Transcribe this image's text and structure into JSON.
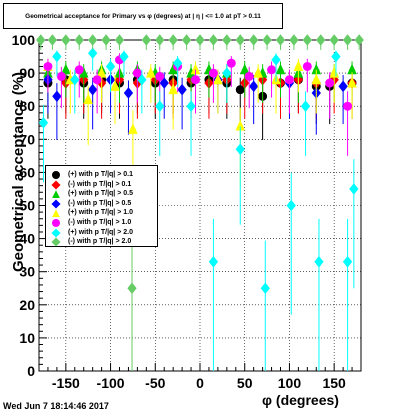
{
  "chart_data": {
    "type": "scatter",
    "title": "Geometrical acceptance for Primary vs φ (degrees) at | η | <= 1.0 at pT > 0.11",
    "xlabel": "φ (degrees)",
    "ylabel": "Geometrical acceptance (%)",
    "xlim": [
      -180,
      180
    ],
    "ylim": [
      0,
      100
    ],
    "xticks": [
      -150,
      -100,
      -50,
      0,
      50,
      100,
      150
    ],
    "yticks": [
      0,
      10,
      20,
      30,
      40,
      50,
      60,
      70,
      80,
      90,
      100
    ],
    "grid": true,
    "legend_position": "left-middle",
    "series": [
      {
        "name": "(+) with p T/|q| > 0.1",
        "color": "#000000",
        "marker": "circle",
        "points": [
          [
            -170,
            87
          ],
          [
            -150,
            88
          ],
          [
            -130,
            87
          ],
          [
            -110,
            88
          ],
          [
            -90,
            87
          ],
          [
            -70,
            88
          ],
          [
            -50,
            87
          ],
          [
            -30,
            88
          ],
          [
            -10,
            87
          ],
          [
            10,
            88
          ],
          [
            30,
            87
          ],
          [
            45,
            85
          ],
          [
            70,
            83
          ],
          [
            90,
            87
          ],
          [
            110,
            88
          ],
          [
            130,
            86
          ],
          [
            145,
            86
          ],
          [
            170,
            87
          ]
        ]
      },
      {
        "name": "(-) with p T/|q| > 0.1",
        "color": "#ff0000",
        "marker": "diamond",
        "points": [
          [
            -170,
            88
          ],
          [
            -150,
            87
          ],
          [
            -130,
            88
          ],
          [
            -110,
            87
          ],
          [
            -90,
            88
          ],
          [
            -70,
            87
          ],
          [
            -50,
            88
          ],
          [
            -30,
            87
          ],
          [
            -10,
            88
          ],
          [
            10,
            87
          ],
          [
            30,
            88
          ],
          [
            50,
            87
          ],
          [
            70,
            88
          ],
          [
            90,
            87
          ],
          [
            110,
            88
          ],
          [
            130,
            87
          ],
          [
            150,
            88
          ],
          [
            170,
            87
          ]
        ]
      },
      {
        "name": "(+) with p T/|q| > 0.5",
        "color": "#00cc00",
        "marker": "triangle",
        "points": [
          [
            -170,
            90
          ],
          [
            -150,
            91
          ],
          [
            -130,
            90
          ],
          [
            -110,
            91
          ],
          [
            -90,
            90
          ],
          [
            -70,
            91
          ],
          [
            -50,
            90
          ],
          [
            -30,
            91
          ],
          [
            -10,
            90
          ],
          [
            10,
            91
          ],
          [
            30,
            90
          ],
          [
            50,
            91
          ],
          [
            70,
            90
          ],
          [
            90,
            91
          ],
          [
            110,
            90
          ],
          [
            130,
            91
          ],
          [
            150,
            90
          ],
          [
            170,
            91
          ]
        ]
      },
      {
        "name": "(-) with p T/|q| > 0.5",
        "color": "#0000ff",
        "marker": "diamond",
        "points": [
          [
            -170,
            88
          ],
          [
            -160,
            83
          ],
          [
            -120,
            85
          ],
          [
            -100,
            88
          ],
          [
            -80,
            84
          ],
          [
            -40,
            87
          ],
          [
            -20,
            85
          ],
          [
            20,
            88
          ],
          [
            60,
            86
          ],
          [
            100,
            87
          ],
          [
            130,
            84
          ],
          [
            160,
            86
          ]
        ]
      },
      {
        "name": "(+) with p T/|q| > 1.0",
        "color": "#ffff00",
        "marker": "triangle",
        "points": [
          [
            -170,
            92
          ],
          [
            -145,
            88
          ],
          [
            -125,
            82
          ],
          [
            -110,
            90
          ],
          [
            -95,
            86
          ],
          [
            -75,
            73
          ],
          [
            -55,
            90
          ],
          [
            -30,
            85
          ],
          [
            -5,
            91
          ],
          [
            20,
            88
          ],
          [
            45,
            74
          ],
          [
            65,
            90
          ],
          [
            85,
            88
          ],
          [
            110,
            92
          ],
          [
            130,
            88
          ],
          [
            150,
            90
          ],
          [
            170,
            87
          ]
        ]
      },
      {
        "name": "(-) with p T/|q| > 1.0",
        "color": "#ff00ff",
        "marker": "circle",
        "points": [
          [
            -170,
            92
          ],
          [
            -155,
            89
          ],
          [
            -135,
            91
          ],
          [
            -115,
            88
          ],
          [
            -90,
            94
          ],
          [
            -70,
            90
          ],
          [
            -45,
            89
          ],
          [
            -25,
            92
          ],
          [
            -5,
            88
          ],
          [
            15,
            90
          ],
          [
            35,
            93
          ],
          [
            55,
            89
          ],
          [
            80,
            91
          ],
          [
            100,
            88
          ],
          [
            120,
            92
          ],
          [
            145,
            87
          ],
          [
            165,
            80
          ]
        ]
      },
      {
        "name": "(+) with p T/|q| > 2.0",
        "color": "#00ffff",
        "marker": "diamond",
        "points": [
          [
            -175,
            75
          ],
          [
            -160,
            95
          ],
          [
            -140,
            88
          ],
          [
            -120,
            96
          ],
          [
            -100,
            92
          ],
          [
            -85,
            95
          ],
          [
            -65,
            88
          ],
          [
            -45,
            80
          ],
          [
            -25,
            93
          ],
          [
            -10,
            80
          ],
          [
            15,
            33
          ],
          [
            30,
            90
          ],
          [
            45,
            67
          ],
          [
            73,
            25
          ],
          [
            85,
            94
          ],
          [
            102,
            50
          ],
          [
            118,
            80
          ],
          [
            133,
            33
          ],
          [
            152,
            95
          ],
          [
            165,
            33
          ],
          [
            172,
            55
          ]
        ]
      },
      {
        "name": "(-) with p T/|q| > 2.0",
        "color": "#66cc66",
        "marker": "diamond",
        "points": [
          [
            -178,
            100
          ],
          [
            -165,
            100
          ],
          [
            -150,
            100
          ],
          [
            -135,
            100
          ],
          [
            -120,
            100
          ],
          [
            -105,
            100
          ],
          [
            -90,
            100
          ],
          [
            -76,
            25
          ],
          [
            -60,
            100
          ],
          [
            -45,
            100
          ],
          [
            -30,
            100
          ],
          [
            -15,
            100
          ],
          [
            0,
            100
          ],
          [
            15,
            100
          ],
          [
            30,
            100
          ],
          [
            45,
            100
          ],
          [
            60,
            100
          ],
          [
            75,
            100
          ],
          [
            90,
            100
          ],
          [
            105,
            100
          ],
          [
            120,
            100
          ],
          [
            135,
            100
          ],
          [
            150,
            100
          ],
          [
            165,
            100
          ],
          [
            178,
            100
          ]
        ]
      }
    ]
  },
  "footer": {
    "datestamp": "Wed Jun  7 18:14:46 2017"
  }
}
